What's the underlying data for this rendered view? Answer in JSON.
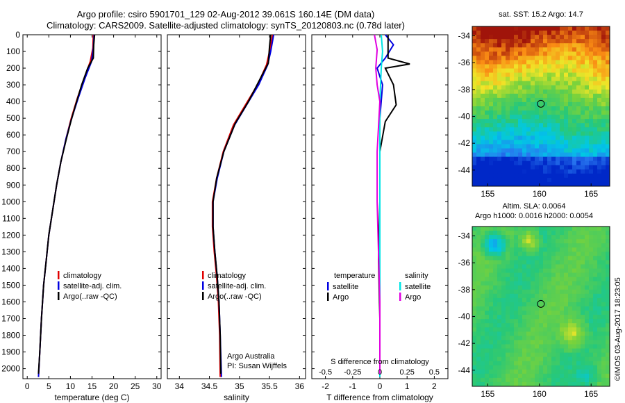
{
  "header": {
    "line1": "Argo profile: csiro 5901701_129 02-Aug-2012 39.061S 160.14E (DM data)",
    "line2": "Climatology: CARS2009. Satellite-adjusted climatology: synTS_20120803.nc (0.78d later)"
  },
  "side_stamp": "©IMOS 03-Aug-2017 18:23:05",
  "colors": {
    "climatology": "#e00000",
    "satellite": "#0000e0",
    "argo": "#000000",
    "satellite_s": "#00e5e5",
    "argo_s": "#e000e0"
  },
  "chart_data": [
    {
      "type": "line",
      "panel": "temperature",
      "xlabel": "temperature (deg C)",
      "ylabel": "",
      "xlim": [
        -1,
        31
      ],
      "ylim": [
        2060,
        0
      ],
      "xticks": [
        0,
        5,
        10,
        15,
        20,
        25,
        30
      ],
      "yticks": [
        0,
        100,
        200,
        300,
        400,
        500,
        600,
        700,
        800,
        900,
        1000,
        1100,
        1200,
        1300,
        1400,
        1500,
        1600,
        1700,
        1800,
        1900,
        2000
      ],
      "legend": [
        "climatology",
        "satellite-adj. clim.",
        "Argo(..raw -QC)"
      ],
      "series": [
        {
          "name": "climatology",
          "color": "#e00000",
          "points": [
            [
              15.3,
              0
            ],
            [
              15.2,
              80
            ],
            [
              14.6,
              160
            ],
            [
              13.2,
              260
            ],
            [
              11.6,
              380
            ],
            [
              10.2,
              500
            ],
            [
              9.0,
              620
            ],
            [
              7.8,
              760
            ],
            [
              6.8,
              900
            ],
            [
              5.9,
              1050
            ],
            [
              5.0,
              1200
            ],
            [
              4.4,
              1350
            ],
            [
              3.8,
              1500
            ],
            [
              3.3,
              1700
            ],
            [
              2.9,
              1900
            ],
            [
              2.6,
              2050
            ]
          ]
        },
        {
          "name": "satellite-adj. clim.",
          "color": "#0000e0",
          "points": [
            [
              15.5,
              0
            ],
            [
              15.3,
              80
            ],
            [
              14.9,
              160
            ],
            [
              13.4,
              260
            ],
            [
              11.8,
              380
            ],
            [
              10.3,
              500
            ],
            [
              9.0,
              620
            ],
            [
              7.8,
              760
            ],
            [
              6.8,
              900
            ],
            [
              5.9,
              1050
            ],
            [
              5.0,
              1200
            ],
            [
              4.4,
              1350
            ],
            [
              3.8,
              1500
            ],
            [
              3.3,
              1700
            ],
            [
              2.9,
              1900
            ],
            [
              2.6,
              2050
            ]
          ]
        },
        {
          "name": "Argo(..raw -QC)",
          "color": "#000000",
          "points": [
            [
              15.6,
              0
            ],
            [
              15.4,
              60
            ],
            [
              15.3,
              140
            ],
            [
              14.0,
              200
            ],
            [
              12.6,
              300
            ],
            [
              11.2,
              420
            ],
            [
              10.1,
              520
            ],
            [
              9.0,
              630
            ],
            [
              7.8,
              760
            ],
            [
              6.8,
              900
            ],
            [
              5.9,
              1050
            ],
            [
              5.0,
              1200
            ],
            [
              4.4,
              1350
            ],
            [
              3.8,
              1500
            ],
            [
              3.3,
              1700
            ],
            [
              2.9,
              1900
            ],
            [
              2.6,
              2030
            ]
          ]
        }
      ]
    },
    {
      "type": "line",
      "panel": "salinity",
      "xlabel": "salinity",
      "xlim": [
        33.8,
        36.1
      ],
      "ylim": [
        2060,
        0
      ],
      "xticks": [
        34,
        34.5,
        35,
        35.5,
        36
      ],
      "legend": [
        "climatology",
        "satellite-adj. clim.",
        "Argo(..raw -QC)"
      ],
      "annotation": [
        "Argo Australia",
        "PI: Susan Wijffels"
      ],
      "series": [
        {
          "name": "climatology",
          "color": "#e00000",
          "points": [
            [
              35.55,
              0
            ],
            [
              35.5,
              100
            ],
            [
              35.45,
              180
            ],
            [
              35.3,
              300
            ],
            [
              35.1,
              420
            ],
            [
              34.9,
              540
            ],
            [
              34.73,
              700
            ],
            [
              34.62,
              860
            ],
            [
              34.55,
              1000
            ],
            [
              34.55,
              1150
            ],
            [
              34.58,
              1300
            ],
            [
              34.62,
              1450
            ],
            [
              34.65,
              1600
            ],
            [
              34.67,
              1800
            ],
            [
              34.68,
              2050
            ]
          ]
        },
        {
          "name": "satellite-adj. clim.",
          "color": "#0000e0",
          "points": [
            [
              35.57,
              0
            ],
            [
              35.52,
              100
            ],
            [
              35.47,
              180
            ],
            [
              35.32,
              300
            ],
            [
              35.12,
              420
            ],
            [
              34.92,
              540
            ],
            [
              34.74,
              700
            ],
            [
              34.63,
              860
            ],
            [
              34.56,
              1000
            ],
            [
              34.56,
              1150
            ],
            [
              34.59,
              1300
            ],
            [
              34.63,
              1450
            ],
            [
              34.66,
              1600
            ],
            [
              34.68,
              1800
            ],
            [
              34.7,
              2050
            ]
          ]
        },
        {
          "name": "Argo(..raw -QC)",
          "color": "#000000",
          "points": [
            [
              35.52,
              0
            ],
            [
              35.5,
              70
            ],
            [
              35.48,
              170
            ],
            [
              35.35,
              260
            ],
            [
              35.15,
              400
            ],
            [
              34.93,
              530
            ],
            [
              34.74,
              700
            ],
            [
              34.62,
              860
            ],
            [
              34.56,
              1000
            ],
            [
              34.56,
              1150
            ],
            [
              34.59,
              1300
            ],
            [
              34.63,
              1450
            ],
            [
              34.66,
              1600
            ],
            [
              34.68,
              1800
            ],
            [
              34.69,
              2030
            ]
          ]
        }
      ]
    },
    {
      "type": "line",
      "panel": "difference",
      "xlabel": "T difference from climatology",
      "xlabel_top": "S difference from climatology",
      "xlim": [
        -2.5,
        2.5
      ],
      "ylim": [
        2060,
        0
      ],
      "xticks": [
        -2,
        -1,
        0,
        1,
        2
      ],
      "xtick_labels_top": [
        "-0.5",
        "-0.25",
        "0",
        "0.25",
        "0.5"
      ],
      "legend_left_title": "temperature",
      "legend_right_title": "salinity",
      "legend_left": [
        "satellite",
        "Argo"
      ],
      "legend_right": [
        "satellite",
        "Argo"
      ],
      "series": [
        {
          "name": "T satellite",
          "color": "#0000e0",
          "points": [
            [
              0.2,
              0
            ],
            [
              0.5,
              60
            ],
            [
              0.2,
              140
            ],
            [
              -0.1,
              200
            ],
            [
              0.1,
              300
            ],
            [
              0.0,
              500
            ],
            [
              0.0,
              1000
            ],
            [
              0.0,
              2050
            ]
          ]
        },
        {
          "name": "T Argo",
          "color": "#000000",
          "points": [
            [
              0.3,
              0
            ],
            [
              0.3,
              80
            ],
            [
              0.3,
              140
            ],
            [
              1.1,
              175
            ],
            [
              0.2,
              200
            ],
            [
              0.5,
              300
            ],
            [
              0.6,
              420
            ],
            [
              0.2,
              520
            ],
            [
              0.0,
              700
            ],
            [
              0.0,
              1000
            ],
            [
              -0.05,
              1350
            ],
            [
              0.0,
              1700
            ],
            [
              0.0,
              2030
            ]
          ]
        },
        {
          "name": "S satellite",
          "color": "#00e5e5",
          "points": [
            [
              0.05,
              0
            ],
            [
              0.1,
              100
            ],
            [
              0.05,
              200
            ],
            [
              0.0,
              400
            ],
            [
              0.0,
              1000
            ],
            [
              0.0,
              2050
            ]
          ]
        },
        {
          "name": "S Argo",
          "color": "#e000e0",
          "points": [
            [
              -0.2,
              0
            ],
            [
              -0.1,
              90
            ],
            [
              -0.15,
              200
            ],
            [
              -0.1,
              300
            ],
            [
              0.0,
              400
            ],
            [
              -0.1,
              700
            ],
            [
              -0.1,
              1000
            ],
            [
              -0.05,
              1300
            ],
            [
              0.0,
              1600
            ],
            [
              0.0,
              2030
            ]
          ]
        }
      ]
    },
    {
      "type": "heatmap",
      "panel": "sst_map",
      "title": "sat. SST: 15.2 Argo: 14.7",
      "xlim": [
        153.5,
        166.8
      ],
      "ylim": [
        -45.2,
        -33.3
      ],
      "xticks": [
        155,
        160,
        165
      ],
      "yticks": [
        -34,
        -36,
        -38,
        -40,
        -42,
        -44
      ],
      "marker": [
        160.14,
        -39.061
      ]
    },
    {
      "type": "heatmap",
      "panel": "sla_map",
      "title_line1": "Altim. SLA: 0.0064",
      "title_line2": "Argo h1000: 0.0016 h2000: 0.0054",
      "xlim": [
        153.5,
        166.8
      ],
      "ylim": [
        -45.2,
        -33.3
      ],
      "xticks": [
        155,
        160,
        165
      ],
      "yticks": [
        -34,
        -36,
        -38,
        -40,
        -42,
        -44
      ],
      "marker": [
        160.14,
        -39.061
      ]
    }
  ]
}
